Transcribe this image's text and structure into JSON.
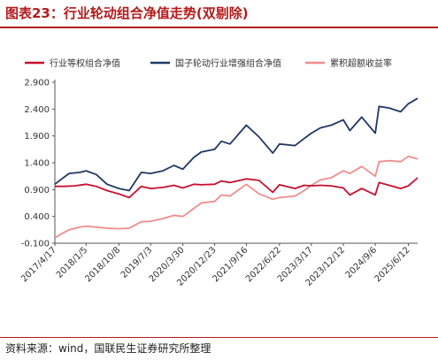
{
  "figure": {
    "title": "图表23：行业轮动组合净值走势(双剔除)",
    "source": "资料来源：wind，国联民生证券研究所整理"
  },
  "chart_data": {
    "type": "line",
    "ylim": [
      -0.1,
      2.9
    ],
    "yticks": [
      "2.900",
      "2.400",
      "1.900",
      "1.400",
      "0.900",
      "0.400",
      "-0.100"
    ],
    "xticks": [
      "2017/4/17",
      "2018/1/5",
      "2018/10/8",
      "2019/7/3",
      "2020/3/30",
      "2020/12/23",
      "2021/9/16",
      "2022/6/22",
      "2023/3/17",
      "2023/12/12",
      "2024/9/6",
      "2025/6/12"
    ],
    "xrange": [
      "2017/4/17",
      "2025/8/29"
    ],
    "legend_position": "top",
    "series": [
      {
        "name": "行业等权组合净值",
        "color": "#c8102e",
        "points": [
          [
            "2017/4/17",
            0.96
          ],
          [
            "2017/7/1",
            0.96
          ],
          [
            "2017/10/1",
            0.97
          ],
          [
            "2018/1/5",
            1.0
          ],
          [
            "2018/4/1",
            0.96
          ],
          [
            "2018/7/1",
            0.88
          ],
          [
            "2018/10/8",
            0.82
          ],
          [
            "2019/1/3",
            0.75
          ],
          [
            "2019/4/15",
            0.96
          ],
          [
            "2019/7/3",
            0.92
          ],
          [
            "2019/10/15",
            0.94
          ],
          [
            "2020/1/15",
            0.98
          ],
          [
            "2020/3/30",
            0.93
          ],
          [
            "2020/7/1",
            1.0
          ],
          [
            "2020/9/1",
            0.99
          ],
          [
            "2020/12/23",
            1.0
          ],
          [
            "2021/2/18",
            1.06
          ],
          [
            "2021/5/1",
            1.03
          ],
          [
            "2021/9/16",
            1.1
          ],
          [
            "2022/1/1",
            1.07
          ],
          [
            "2022/4/27",
            0.85
          ],
          [
            "2022/6/22",
            0.99
          ],
          [
            "2022/10/31",
            0.92
          ],
          [
            "2023/1/15",
            0.98
          ],
          [
            "2023/3/17",
            0.97
          ],
          [
            "2023/6/1",
            0.98
          ],
          [
            "2023/9/1",
            0.97
          ],
          [
            "2023/12/12",
            0.93
          ],
          [
            "2024/2/5",
            0.8
          ],
          [
            "2024/5/15",
            0.92
          ],
          [
            "2024/9/6",
            0.8
          ],
          [
            "2024/10/8",
            1.03
          ],
          [
            "2025/1/1",
            0.98
          ],
          [
            "2025/4/8",
            0.92
          ],
          [
            "2025/6/12",
            0.97
          ],
          [
            "2025/8/29",
            1.12
          ]
        ]
      },
      {
        "name": "国子轮动行业增强组合净值",
        "color": "#1f3864",
        "points": [
          [
            "2017/4/17",
            1.0
          ],
          [
            "2017/6/15",
            1.1
          ],
          [
            "2017/8/15",
            1.2
          ],
          [
            "2017/11/15",
            1.22
          ],
          [
            "2018/1/5",
            1.25
          ],
          [
            "2018/4/1",
            1.18
          ],
          [
            "2018/7/1",
            1.0
          ],
          [
            "2018/10/8",
            0.92
          ],
          [
            "2019/1/3",
            0.88
          ],
          [
            "2019/4/15",
            1.22
          ],
          [
            "2019/7/3",
            1.2
          ],
          [
            "2019/10/15",
            1.25
          ],
          [
            "2020/1/15",
            1.35
          ],
          [
            "2020/3/30",
            1.28
          ],
          [
            "2020/7/1",
            1.5
          ],
          [
            "2020/9/1",
            1.6
          ],
          [
            "2020/12/23",
            1.65
          ],
          [
            "2021/2/18",
            1.8
          ],
          [
            "2021/5/1",
            1.75
          ],
          [
            "2021/9/16",
            2.1
          ],
          [
            "2022/1/1",
            1.88
          ],
          [
            "2022/4/27",
            1.58
          ],
          [
            "2022/6/22",
            1.75
          ],
          [
            "2022/10/31",
            1.72
          ],
          [
            "2023/1/15",
            1.85
          ],
          [
            "2023/3/17",
            1.95
          ],
          [
            "2023/6/1",
            2.05
          ],
          [
            "2023/9/1",
            2.1
          ],
          [
            "2023/12/12",
            2.2
          ],
          [
            "2024/2/5",
            2.0
          ],
          [
            "2024/5/15",
            2.25
          ],
          [
            "2024/9/6",
            1.95
          ],
          [
            "2024/10/8",
            2.45
          ],
          [
            "2025/1/1",
            2.42
          ],
          [
            "2025/4/8",
            2.35
          ],
          [
            "2025/6/12",
            2.5
          ],
          [
            "2025/8/29",
            2.6
          ]
        ]
      },
      {
        "name": "累积超额收益率",
        "color": "#f08c8c",
        "points": [
          [
            "2017/4/17",
            0.0
          ],
          [
            "2017/6/15",
            0.08
          ],
          [
            "2017/8/15",
            0.15
          ],
          [
            "2017/11/15",
            0.2
          ],
          [
            "2018/1/5",
            0.22
          ],
          [
            "2018/4/1",
            0.2
          ],
          [
            "2018/7/1",
            0.18
          ],
          [
            "2018/10/8",
            0.17
          ],
          [
            "2019/1/3",
            0.18
          ],
          [
            "2019/4/15",
            0.3
          ],
          [
            "2019/7/3",
            0.31
          ],
          [
            "2019/10/15",
            0.36
          ],
          [
            "2020/1/15",
            0.42
          ],
          [
            "2020/3/30",
            0.4
          ],
          [
            "2020/7/1",
            0.55
          ],
          [
            "2020/9/1",
            0.65
          ],
          [
            "2020/12/23",
            0.68
          ],
          [
            "2021/2/18",
            0.8
          ],
          [
            "2021/5/1",
            0.78
          ],
          [
            "2021/9/16",
            1.0
          ],
          [
            "2022/1/1",
            0.82
          ],
          [
            "2022/4/27",
            0.72
          ],
          [
            "2022/6/22",
            0.75
          ],
          [
            "2022/10/31",
            0.78
          ],
          [
            "2023/1/15",
            0.88
          ],
          [
            "2023/3/17",
            0.98
          ],
          [
            "2023/6/1",
            1.08
          ],
          [
            "2023/9/1",
            1.12
          ],
          [
            "2023/12/12",
            1.25
          ],
          [
            "2024/2/5",
            1.2
          ],
          [
            "2024/5/15",
            1.33
          ],
          [
            "2024/9/6",
            1.15
          ],
          [
            "2024/10/8",
            1.42
          ],
          [
            "2025/1/1",
            1.44
          ],
          [
            "2025/4/8",
            1.42
          ],
          [
            "2025/6/12",
            1.52
          ],
          [
            "2025/8/29",
            1.47
          ]
        ]
      }
    ]
  }
}
